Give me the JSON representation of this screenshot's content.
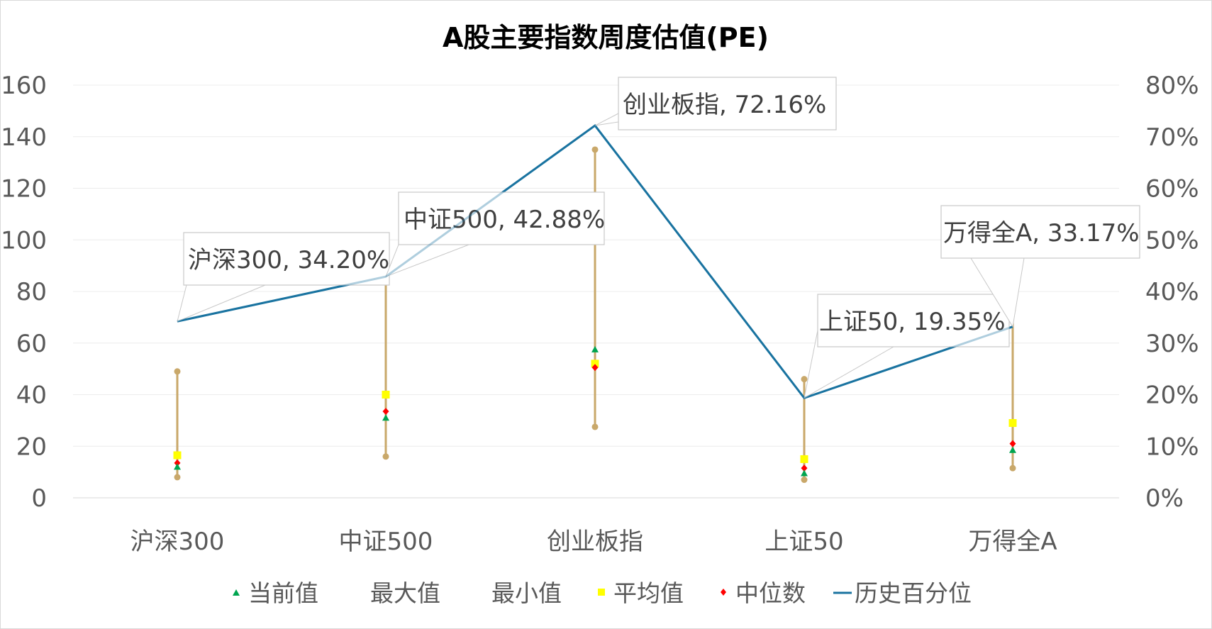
{
  "chart_data": {
    "type": "line",
    "title": "A股主要指数周度估值(PE)",
    "categories": [
      "沪深300",
      "中证500",
      "创业板指",
      "上证50",
      "万得全A"
    ],
    "y_left": {
      "min": 0,
      "max": 160,
      "ticks": [
        "0",
        "20",
        "40",
        "60",
        "80",
        "100",
        "120",
        "140",
        "160"
      ]
    },
    "y_right": {
      "min": 0,
      "max": 0.8,
      "ticks": [
        "0%",
        "10%",
        "20%",
        "30%",
        "40%",
        "50%",
        "60%",
        "70%",
        "80%"
      ]
    },
    "series": [
      {
        "name": "当前值",
        "axis": "left",
        "marker": "triangle",
        "color": "#00a550",
        "values": [
          12,
          31,
          57.5,
          9.5,
          18.5
        ]
      },
      {
        "name": "最大值",
        "axis": "left",
        "marker": "circle",
        "color": "#c9a86a",
        "values": [
          49,
          85,
          135,
          46,
          73
        ]
      },
      {
        "name": "最小值",
        "axis": "left",
        "marker": "circle",
        "color": "#c9a86a",
        "values": [
          8,
          16,
          27.5,
          7,
          11.5
        ]
      },
      {
        "name": "平均值",
        "axis": "left",
        "marker": "square",
        "color": "#ffff00",
        "values": [
          16.5,
          40,
          52,
          15,
          29
        ]
      },
      {
        "name": "中位数",
        "axis": "left",
        "marker": "diamond",
        "color": "#ff0000",
        "values": [
          13.5,
          33.5,
          50.5,
          11.5,
          21
        ]
      },
      {
        "name": "历史百分位",
        "axis": "right",
        "marker": "line",
        "color": "#1a73a0",
        "values": [
          0.342,
          0.4288,
          0.7216,
          0.1935,
          0.3317
        ]
      }
    ],
    "range_bar_color": "#c9a86a",
    "callouts": [
      "沪深300, 34.20%",
      "中证500, 42.88%",
      "创业板指, 72.16%",
      "上证50, 19.35%",
      "万得全A, 33.17%"
    ],
    "legend": [
      "当前值",
      "最大值",
      "最小值",
      "平均值",
      "中位数",
      "历史百分位"
    ],
    "legend_position": "bottom"
  }
}
